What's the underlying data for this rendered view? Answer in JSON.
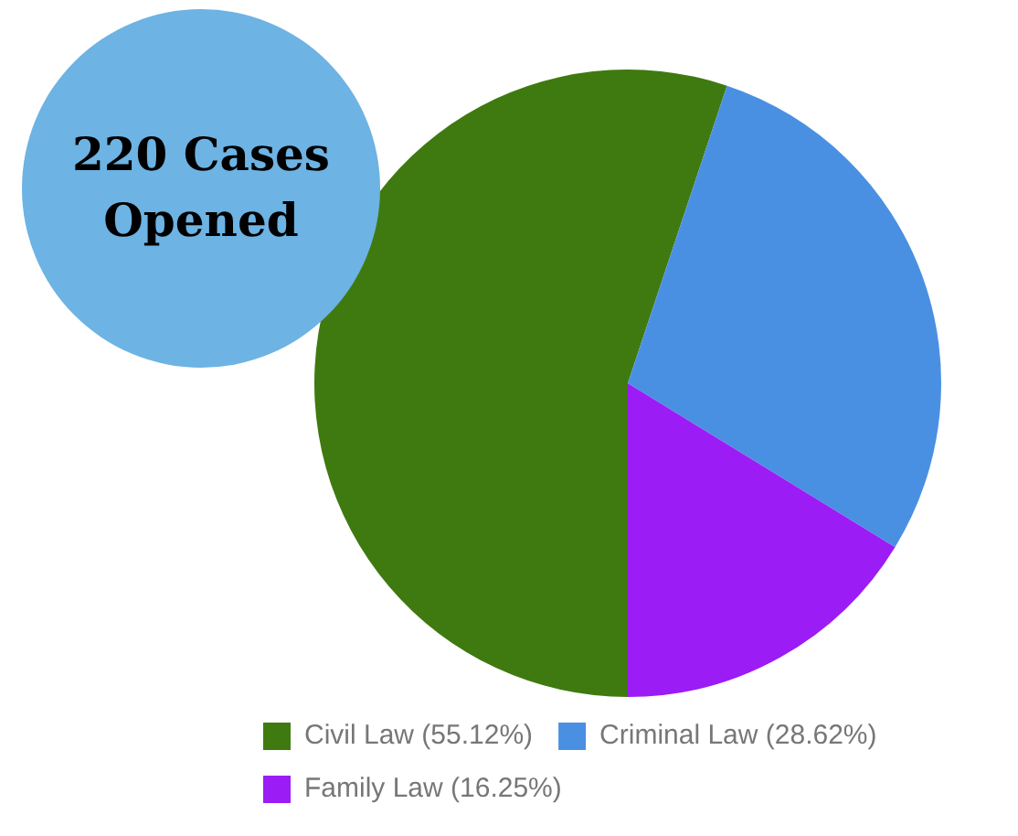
{
  "chart_data": {
    "type": "pie",
    "categories": [
      "Civil Law (55.12%)",
      "Criminal Law (28.62%)",
      "Family Law (16.25%)"
    ],
    "values": [
      55.12,
      28.62,
      16.25
    ],
    "colors": [
      "#3f7a10",
      "#4a90e2",
      "#9b1cf5"
    ],
    "legend": "bottom",
    "annotations": [
      "220 Cases Opened"
    ]
  }
}
